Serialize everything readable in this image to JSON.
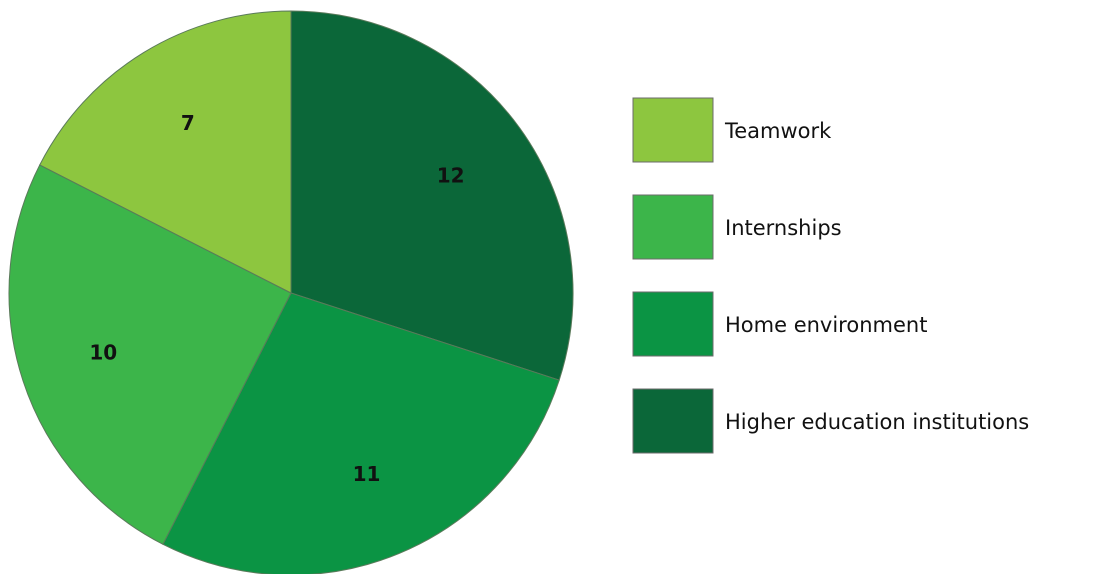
{
  "chart_data": {
    "type": "pie",
    "categories": [
      "Teamwork",
      "Internships",
      "Home environment",
      "Higher education institutions"
    ],
    "values": [
      7,
      10,
      11,
      12
    ],
    "colors": [
      "#8dc63f",
      "#3cb54a",
      "#0b9444",
      "#0b6739"
    ],
    "legend": "right"
  }
}
